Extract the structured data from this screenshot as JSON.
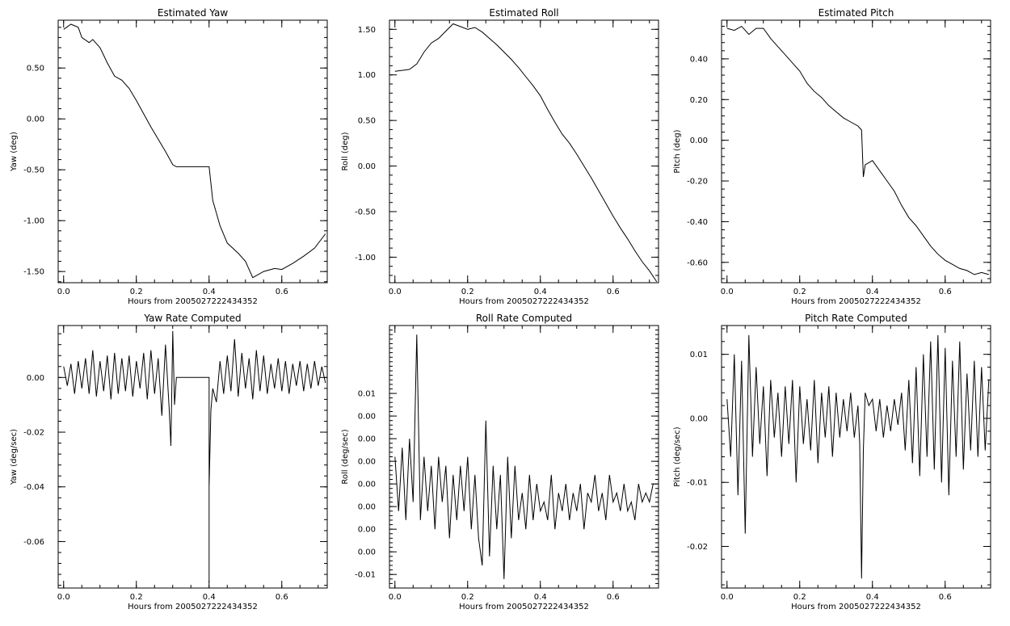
{
  "chart_data": [
    {
      "type": "line",
      "title": "Estimated Yaw",
      "xlabel": "Hours from 2005027222434352",
      "ylabel": "Yaw (deg)",
      "xlim": [
        -0.015,
        0.725
      ],
      "ylim": [
        -1.61,
        0.97
      ],
      "xticks": [
        0.0,
        0.2,
        0.4,
        0.6
      ],
      "xtick_labels": [
        "0.0",
        "0.2",
        "0.4",
        "0.6"
      ],
      "yticks": [
        -1.5,
        -1.0,
        -0.5,
        0.0,
        0.5
      ],
      "ytick_labels": [
        "-1.50",
        "-1.00",
        "-0.50",
        "0.00",
        "0.50"
      ],
      "series": [
        {
          "x": [
            0.0,
            0.02,
            0.04,
            0.05,
            0.07,
            0.08,
            0.1,
            0.12,
            0.14,
            0.16,
            0.18,
            0.2,
            0.22,
            0.24,
            0.26,
            0.28,
            0.3,
            0.31,
            0.4,
            0.41,
            0.43,
            0.45,
            0.48,
            0.5,
            0.52,
            0.55,
            0.58,
            0.6,
            0.63,
            0.66,
            0.69,
            0.72
          ],
          "y": [
            0.88,
            0.93,
            0.9,
            0.8,
            0.75,
            0.78,
            0.7,
            0.55,
            0.42,
            0.38,
            0.3,
            0.18,
            0.05,
            -0.08,
            -0.2,
            -0.32,
            -0.45,
            -0.47,
            -0.47,
            -0.8,
            -1.05,
            -1.22,
            -1.32,
            -1.4,
            -1.56,
            -1.5,
            -1.47,
            -1.48,
            -1.42,
            -1.35,
            -1.27,
            -1.13
          ]
        }
      ]
    },
    {
      "type": "line",
      "title": "Estimated Roll",
      "xlabel": "Hours from 2005027222434352",
      "ylabel": "Roll (deg)",
      "xlim": [
        -0.015,
        0.725
      ],
      "ylim": [
        -1.28,
        1.6
      ],
      "xticks": [
        0.0,
        0.2,
        0.4,
        0.6
      ],
      "xtick_labels": [
        "0.0",
        "0.2",
        "0.4",
        "0.6"
      ],
      "yticks": [
        -1.0,
        -0.5,
        0.0,
        0.5,
        1.0,
        1.5
      ],
      "ytick_labels": [
        "-1.00",
        "-0.50",
        "0.00",
        "0.50",
        "1.00",
        "1.50"
      ],
      "series": [
        {
          "x": [
            0.0,
            0.02,
            0.04,
            0.06,
            0.08,
            0.1,
            0.12,
            0.14,
            0.16,
            0.18,
            0.2,
            0.22,
            0.24,
            0.26,
            0.28,
            0.3,
            0.32,
            0.34,
            0.36,
            0.38,
            0.4,
            0.42,
            0.44,
            0.46,
            0.48,
            0.5,
            0.52,
            0.54,
            0.56,
            0.58,
            0.6,
            0.62,
            0.64,
            0.66,
            0.68,
            0.7,
            0.72
          ],
          "y": [
            1.04,
            1.05,
            1.06,
            1.12,
            1.25,
            1.35,
            1.4,
            1.48,
            1.56,
            1.53,
            1.5,
            1.52,
            1.47,
            1.4,
            1.33,
            1.25,
            1.17,
            1.08,
            0.98,
            0.88,
            0.77,
            0.62,
            0.48,
            0.35,
            0.25,
            0.13,
            0.0,
            -0.13,
            -0.27,
            -0.41,
            -0.55,
            -0.68,
            -0.8,
            -0.93,
            -1.05,
            -1.15,
            -1.27
          ]
        }
      ]
    },
    {
      "type": "line",
      "title": "Estimated Pitch",
      "xlabel": "Hours from 2005027222434352",
      "ylabel": "Pitch (deg)",
      "xlim": [
        -0.015,
        0.725
      ],
      "ylim": [
        -0.7,
        0.59
      ],
      "xticks": [
        0.0,
        0.2,
        0.4,
        0.6
      ],
      "xtick_labels": [
        "0.0",
        "0.2",
        "0.4",
        "0.6"
      ],
      "yticks": [
        -0.6,
        -0.4,
        -0.2,
        0.0,
        0.2,
        0.4
      ],
      "ytick_labels": [
        "-0.60",
        "-0.40",
        "-0.20",
        "0.00",
        "0.20",
        "0.40"
      ],
      "series": [
        {
          "x": [
            0.0,
            0.02,
            0.04,
            0.06,
            0.08,
            0.1,
            0.12,
            0.14,
            0.16,
            0.18,
            0.2,
            0.22,
            0.24,
            0.26,
            0.28,
            0.3,
            0.32,
            0.34,
            0.36,
            0.37,
            0.375,
            0.38,
            0.4,
            0.42,
            0.44,
            0.46,
            0.48,
            0.5,
            0.52,
            0.54,
            0.56,
            0.58,
            0.6,
            0.62,
            0.64,
            0.66,
            0.68,
            0.7,
            0.72
          ],
          "y": [
            0.55,
            0.54,
            0.56,
            0.52,
            0.55,
            0.55,
            0.5,
            0.46,
            0.42,
            0.38,
            0.34,
            0.28,
            0.24,
            0.21,
            0.17,
            0.14,
            0.11,
            0.09,
            0.07,
            0.05,
            -0.18,
            -0.12,
            -0.1,
            -0.15,
            -0.2,
            -0.25,
            -0.32,
            -0.38,
            -0.42,
            -0.47,
            -0.52,
            -0.56,
            -0.59,
            -0.61,
            -0.63,
            -0.64,
            -0.66,
            -0.65,
            -0.66
          ]
        }
      ]
    },
    {
      "type": "line",
      "title": "Yaw Rate Computed",
      "xlabel": "Hours from 2005027222434352",
      "ylabel": "Yaw (deg/sec)",
      "xlim": [
        -0.015,
        0.725
      ],
      "ylim": [
        -0.077,
        0.019
      ],
      "xticks": [
        0.0,
        0.2,
        0.4,
        0.6
      ],
      "xtick_labels": [
        "0.0",
        "0.2",
        "0.4",
        "0.6"
      ],
      "yticks": [
        -0.06,
        -0.04,
        -0.02,
        0.0
      ],
      "ytick_labels": [
        "-0.06",
        "-0.04",
        "-0.02",
        "0.00"
      ],
      "series": [
        {
          "x": [
            0.0,
            0.01,
            0.02,
            0.03,
            0.04,
            0.05,
            0.06,
            0.07,
            0.08,
            0.09,
            0.1,
            0.11,
            0.12,
            0.13,
            0.14,
            0.15,
            0.16,
            0.17,
            0.18,
            0.19,
            0.2,
            0.21,
            0.22,
            0.23,
            0.24,
            0.25,
            0.26,
            0.27,
            0.28,
            0.29,
            0.295,
            0.3,
            0.305,
            0.31,
            0.4,
            0.4,
            0.4,
            0.405,
            0.41,
            0.42,
            0.43,
            0.44,
            0.45,
            0.46,
            0.47,
            0.48,
            0.49,
            0.5,
            0.51,
            0.52,
            0.53,
            0.54,
            0.55,
            0.56,
            0.57,
            0.58,
            0.59,
            0.6,
            0.61,
            0.62,
            0.63,
            0.64,
            0.65,
            0.66,
            0.67,
            0.68,
            0.69,
            0.7,
            0.71,
            0.72
          ],
          "y": [
            0.004,
            -0.003,
            0.005,
            -0.006,
            0.006,
            -0.004,
            0.007,
            -0.006,
            0.01,
            -0.007,
            0.006,
            -0.005,
            0.008,
            -0.008,
            0.009,
            -0.006,
            0.007,
            -0.005,
            0.008,
            -0.007,
            0.006,
            -0.004,
            0.009,
            -0.008,
            0.01,
            -0.006,
            0.007,
            -0.014,
            0.012,
            -0.011,
            -0.025,
            0.017,
            -0.01,
            0.0,
            0.0,
            -0.075,
            -0.04,
            -0.012,
            -0.004,
            -0.009,
            0.006,
            -0.006,
            0.008,
            -0.005,
            0.014,
            -0.007,
            0.009,
            -0.004,
            0.007,
            -0.008,
            0.01,
            -0.005,
            0.008,
            -0.006,
            0.005,
            -0.004,
            0.007,
            -0.005,
            0.006,
            -0.006,
            0.005,
            -0.003,
            0.006,
            -0.005,
            0.005,
            -0.004,
            0.006,
            -0.003,
            0.004,
            -0.002
          ]
        }
      ]
    },
    {
      "type": "line",
      "title": "Roll Rate Computed",
      "xlabel": "Hours from 2005027222434352",
      "ylabel": "Roll (deg/sec)",
      "xlim": [
        -0.015,
        0.725
      ],
      "ylim": [
        -0.0115,
        0.0175
      ],
      "xticks": [
        0.0,
        0.2,
        0.4,
        0.6
      ],
      "xtick_labels": [
        "0.0",
        "0.2",
        "0.4",
        "0.6"
      ],
      "yticks": [
        -0.01,
        -0.0075,
        -0.005,
        -0.0025,
        0.0,
        0.0025,
        0.005,
        0.0075,
        0.01
      ],
      "ytick_labels": [
        "-0.01",
        "0.00",
        "0.00",
        "0.00",
        "0.00",
        "0.00",
        "0.00",
        "0.00",
        "0.01"
      ],
      "series": [
        {
          "x": [
            0.0,
            0.01,
            0.02,
            0.03,
            0.04,
            0.05,
            0.06,
            0.07,
            0.08,
            0.09,
            0.1,
            0.11,
            0.12,
            0.13,
            0.14,
            0.15,
            0.16,
            0.17,
            0.18,
            0.19,
            0.2,
            0.21,
            0.22,
            0.23,
            0.24,
            0.25,
            0.26,
            0.27,
            0.28,
            0.29,
            0.3,
            0.31,
            0.32,
            0.33,
            0.34,
            0.35,
            0.36,
            0.37,
            0.38,
            0.39,
            0.4,
            0.41,
            0.42,
            0.43,
            0.44,
            0.45,
            0.46,
            0.47,
            0.48,
            0.49,
            0.5,
            0.51,
            0.52,
            0.53,
            0.54,
            0.55,
            0.56,
            0.57,
            0.58,
            0.59,
            0.6,
            0.61,
            0.62,
            0.63,
            0.64,
            0.65,
            0.66,
            0.67,
            0.68,
            0.69,
            0.7,
            0.71,
            0.72
          ],
          "y": [
            0.003,
            -0.003,
            0.004,
            -0.004,
            0.005,
            -0.002,
            0.0165,
            -0.004,
            0.003,
            -0.003,
            0.002,
            -0.005,
            0.003,
            -0.002,
            0.002,
            -0.006,
            0.001,
            -0.004,
            0.002,
            -0.003,
            0.003,
            -0.005,
            0.001,
            -0.006,
            -0.009,
            0.007,
            -0.008,
            0.002,
            -0.005,
            0.001,
            -0.0105,
            0.003,
            -0.006,
            0.002,
            -0.004,
            -0.001,
            -0.005,
            0.001,
            -0.004,
            0.0,
            -0.003,
            -0.002,
            -0.004,
            0.001,
            -0.005,
            -0.001,
            -0.003,
            0.0,
            -0.004,
            -0.001,
            -0.003,
            0.0,
            -0.005,
            -0.001,
            -0.002,
            0.001,
            -0.003,
            -0.001,
            -0.004,
            0.001,
            -0.002,
            -0.001,
            -0.003,
            0.0,
            -0.003,
            -0.002,
            -0.004,
            0.0,
            -0.002,
            -0.001,
            -0.002,
            0.0,
            0.0
          ]
        }
      ]
    },
    {
      "type": "line",
      "title": "Pitch Rate Computed",
      "xlabel": "Hours from 2005027222434352",
      "ylabel": "Pitch (deg/sec)",
      "xlim": [
        -0.015,
        0.725
      ],
      "ylim": [
        -0.0265,
        0.0145
      ],
      "xticks": [
        0.0,
        0.2,
        0.4,
        0.6
      ],
      "xtick_labels": [
        "0.0",
        "0.2",
        "0.4",
        "0.6"
      ],
      "yticks": [
        -0.02,
        -0.01,
        0.0,
        0.01
      ],
      "ytick_labels": [
        "-0.02",
        "-0.01",
        "0.00",
        "0.01"
      ],
      "series": [
        {
          "x": [
            0.0,
            0.01,
            0.02,
            0.03,
            0.04,
            0.05,
            0.06,
            0.07,
            0.08,
            0.09,
            0.1,
            0.11,
            0.12,
            0.13,
            0.14,
            0.15,
            0.16,
            0.17,
            0.18,
            0.19,
            0.2,
            0.21,
            0.22,
            0.23,
            0.24,
            0.25,
            0.26,
            0.27,
            0.28,
            0.29,
            0.3,
            0.31,
            0.32,
            0.33,
            0.34,
            0.35,
            0.36,
            0.365,
            0.37,
            0.375,
            0.38,
            0.39,
            0.4,
            0.41,
            0.42,
            0.43,
            0.44,
            0.45,
            0.46,
            0.47,
            0.48,
            0.49,
            0.5,
            0.51,
            0.52,
            0.53,
            0.54,
            0.55,
            0.56,
            0.57,
            0.58,
            0.59,
            0.6,
            0.61,
            0.62,
            0.63,
            0.64,
            0.65,
            0.66,
            0.67,
            0.68,
            0.69,
            0.7,
            0.71,
            0.72
          ],
          "y": [
            0.003,
            -0.006,
            0.01,
            -0.012,
            0.009,
            -0.018,
            0.013,
            -0.006,
            0.008,
            -0.004,
            0.005,
            -0.009,
            0.006,
            -0.003,
            0.004,
            -0.006,
            0.005,
            -0.004,
            0.006,
            -0.01,
            0.005,
            -0.004,
            0.003,
            -0.005,
            0.006,
            -0.007,
            0.004,
            -0.003,
            0.005,
            -0.006,
            0.004,
            -0.003,
            0.003,
            -0.002,
            0.004,
            -0.003,
            0.002,
            -0.004,
            -0.025,
            -0.005,
            0.004,
            0.002,
            0.003,
            -0.002,
            0.003,
            -0.003,
            0.002,
            -0.002,
            0.003,
            -0.001,
            0.004,
            -0.005,
            0.006,
            -0.007,
            0.008,
            -0.009,
            0.01,
            -0.006,
            0.012,
            -0.008,
            0.013,
            -0.01,
            0.011,
            -0.012,
            0.009,
            -0.006,
            0.012,
            -0.008,
            0.007,
            -0.005,
            0.009,
            -0.006,
            0.008,
            -0.005,
            0.006
          ]
        }
      ]
    }
  ]
}
